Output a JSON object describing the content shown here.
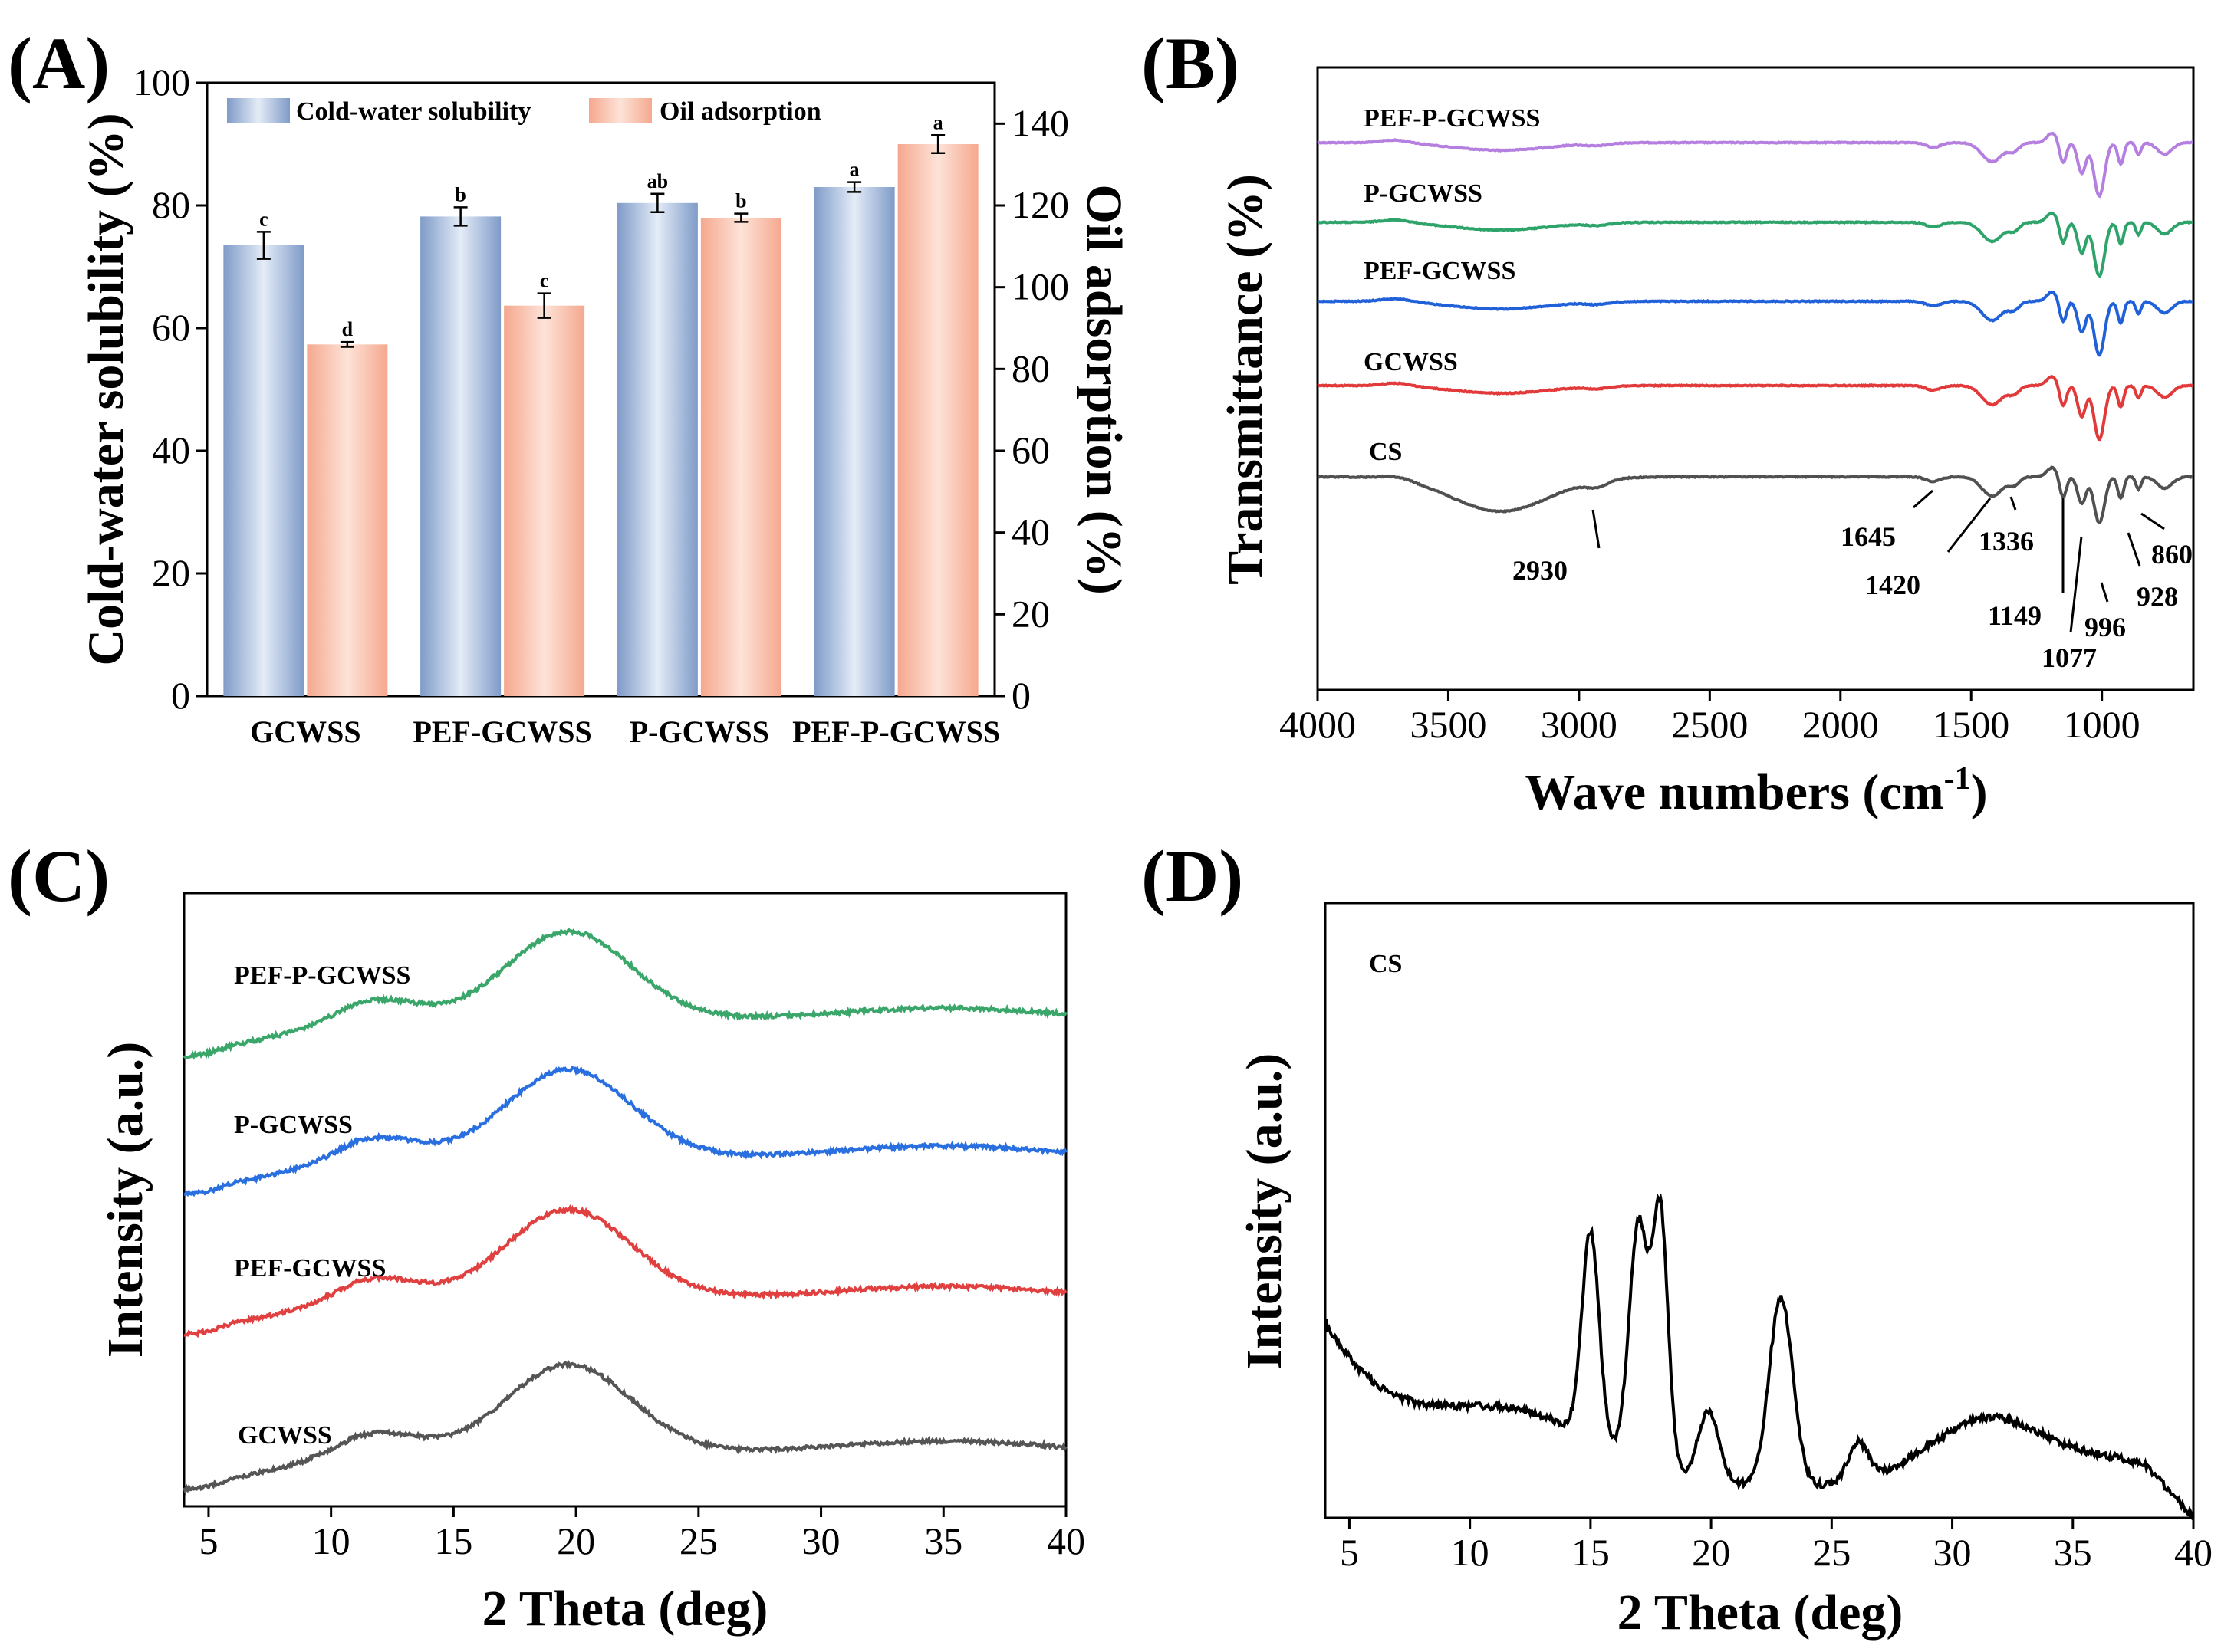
{
  "figure": {
    "panels": [
      "(A)",
      "(B)",
      "(C)",
      "(D)"
    ]
  },
  "chart_data": [
    {
      "id": "A",
      "type": "bar",
      "panel_label": "(A)",
      "categories": [
        "GCWSS",
        "PEF-GCWSS",
        "P-GCWSS",
        "PEF-P-GCWSS"
      ],
      "series": [
        {
          "name": "Cold-water solubility",
          "axis": "left",
          "color": "#7f9bc8",
          "values": [
            73.5,
            78.2,
            80.4,
            83.0
          ],
          "errors": [
            2.2,
            1.5,
            1.5,
            0.8
          ],
          "letters": [
            "c",
            "b",
            "ab",
            "a"
          ]
        },
        {
          "name": "Oil adsorption",
          "axis": "right",
          "color": "#f5a88e",
          "values": [
            86.0,
            95.5,
            117.0,
            135.0
          ],
          "errors": [
            0.6,
            3.0,
            1.0,
            2.2
          ],
          "letters": [
            "d",
            "c",
            "b",
            "a"
          ]
        }
      ],
      "ylabel": "Cold-water solubility (%)",
      "ylabel_right": "Oil adsorption (%)",
      "ylim": [
        0,
        100
      ],
      "ylim_right": [
        0,
        150
      ],
      "yticks": [
        "0",
        "20",
        "40",
        "60",
        "80",
        "100"
      ],
      "yticks_right": [
        "0",
        "20",
        "40",
        "60",
        "80",
        "100",
        "120",
        "140"
      ],
      "legend": [
        "Cold-water solubility",
        "Oil adsorption"
      ],
      "legend_position": "top"
    },
    {
      "id": "B",
      "type": "line",
      "panel_label": "(B)",
      "xlabel": "Wave numbers (cm",
      "xlabel_sup": "-1",
      "xlabel_end": ")",
      "ylabel": "Transmittance (%)",
      "xlim": [
        4000,
        650
      ],
      "xticks": [
        "4000",
        "3500",
        "3000",
        "2500",
        "2000",
        "1500",
        "1000"
      ],
      "series": [
        {
          "name": "PEF-P-GCWSS",
          "color": "#b57fe0"
        },
        {
          "name": "P-GCWSS",
          "color": "#2ea36a"
        },
        {
          "name": "PEF-GCWSS",
          "color": "#2060d8"
        },
        {
          "name": "GCWSS",
          "color": "#e23a3a"
        },
        {
          "name": "CS",
          "color": "#505050"
        }
      ],
      "annotations": [
        "2930",
        "1645",
        "1420",
        "1336",
        "1149",
        "1077",
        "996",
        "928",
        "860"
      ]
    },
    {
      "id": "C",
      "type": "line",
      "panel_label": "(C)",
      "xlabel": "2 Theta (deg)",
      "ylabel": "Intensity (a.u.)",
      "xlim": [
        4,
        40
      ],
      "xticks": [
        "5",
        "10",
        "15",
        "20",
        "25",
        "30",
        "35",
        "40"
      ],
      "series": [
        {
          "name": "PEF-P-GCWSS",
          "color": "#3aa66a"
        },
        {
          "name": "P-GCWSS",
          "color": "#2a6fe0"
        },
        {
          "name": "PEF-GCWSS",
          "color": "#e0403f"
        },
        {
          "name": "GCWSS",
          "color": "#555555"
        }
      ]
    },
    {
      "id": "D",
      "type": "line",
      "panel_label": "(D)",
      "xlabel": "2 Theta (deg)",
      "ylabel": "Intensity (a.u.)",
      "xlim": [
        4,
        40
      ],
      "xticks": [
        "5",
        "10",
        "15",
        "20",
        "25",
        "30",
        "35",
        "40"
      ],
      "series": [
        {
          "name": "CS",
          "color": "#000000",
          "peaks": [
            15.0,
            17.0,
            17.9,
            19.9,
            22.9,
            26.1,
            30.0
          ]
        }
      ]
    }
  ]
}
